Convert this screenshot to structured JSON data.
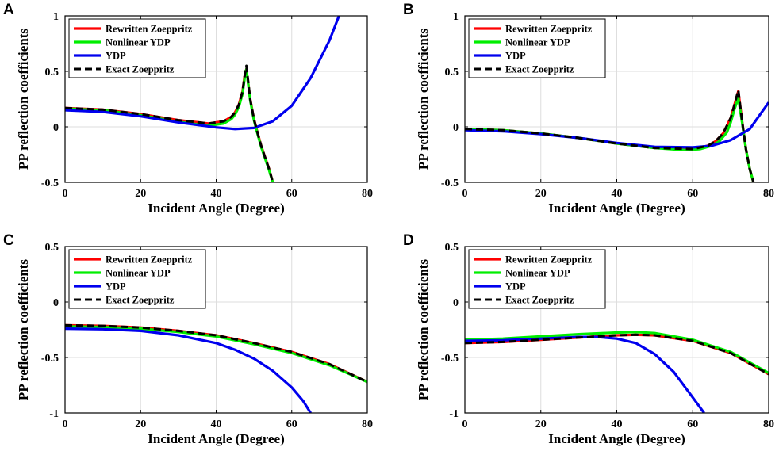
{
  "chart_data": [
    {
      "type": "line",
      "panel": "A",
      "xlabel": "Incident Angle (Degree)",
      "ylabel": "PP reflection coefficients",
      "xlim": [
        0,
        80
      ],
      "ylim": [
        -0.5,
        1
      ],
      "xticks": [
        0,
        20,
        40,
        60,
        80
      ],
      "xtick_labels": [
        "0",
        "20",
        "40",
        "60",
        "80"
      ],
      "yticks": [
        -0.5,
        0,
        0.5,
        1
      ],
      "ytick_labels": [
        "-0.5",
        "0",
        "0.5",
        "1"
      ],
      "grid": true,
      "legend_position": "top-left",
      "series": [
        {
          "name": "Rewritten Zoeppritz",
          "color": "#ff0000",
          "style": "solid",
          "x": [
            0,
            10,
            20,
            30,
            38,
            42,
            44,
            45,
            46,
            47,
            47.5,
            48,
            49,
            50,
            51,
            52,
            53,
            54,
            55
          ],
          "y": [
            0.17,
            0.155,
            0.115,
            0.06,
            0.03,
            0.05,
            0.09,
            0.13,
            0.2,
            0.32,
            0.45,
            0.52,
            0.25,
            0.07,
            -0.06,
            -0.18,
            -0.28,
            -0.38,
            -0.5
          ]
        },
        {
          "name": "Nonlinear YDP",
          "color": "#00ee00",
          "style": "solid",
          "x": [
            0,
            10,
            20,
            30,
            38,
            42,
            44,
            45,
            46,
            47,
            47.5,
            48,
            49,
            50,
            51,
            52,
            53,
            54,
            55
          ],
          "y": [
            0.165,
            0.15,
            0.105,
            0.045,
            0.01,
            0.03,
            0.07,
            0.11,
            0.18,
            0.3,
            0.43,
            0.52,
            0.24,
            0.06,
            -0.07,
            -0.19,
            -0.29,
            -0.39,
            -0.5
          ]
        },
        {
          "name": "YDP",
          "color": "#0000ee",
          "style": "solid",
          "x": [
            0,
            10,
            20,
            30,
            40,
            45,
            50,
            55,
            60,
            65,
            70,
            72.5
          ],
          "y": [
            0.15,
            0.135,
            0.095,
            0.04,
            -0.005,
            -0.02,
            -0.01,
            0.05,
            0.19,
            0.44,
            0.78,
            1.0
          ]
        },
        {
          "name": "Exact Zoeppritz",
          "color": "#000000",
          "style": "dashed",
          "x": [
            0,
            10,
            20,
            30,
            38,
            42,
            44,
            45,
            46,
            47,
            47.5,
            48,
            49,
            50,
            51,
            52,
            53,
            54,
            55
          ],
          "y": [
            0.17,
            0.155,
            0.115,
            0.06,
            0.03,
            0.05,
            0.09,
            0.13,
            0.2,
            0.32,
            0.45,
            0.55,
            0.25,
            0.07,
            -0.06,
            -0.18,
            -0.28,
            -0.38,
            -0.5
          ]
        }
      ]
    },
    {
      "type": "line",
      "panel": "B",
      "xlabel": "Incident Angle (Degree)",
      "ylabel": "PP reflection coefficients",
      "xlim": [
        0,
        80
      ],
      "ylim": [
        -0.5,
        1
      ],
      "xticks": [
        0,
        20,
        40,
        60,
        80
      ],
      "xtick_labels": [
        "0",
        "20",
        "40",
        "60",
        "80"
      ],
      "yticks": [
        -0.5,
        0,
        0.5,
        1
      ],
      "ytick_labels": [
        "-0.5",
        "0",
        "0.5",
        "1"
      ],
      "grid": true,
      "legend_position": "top-left",
      "series": [
        {
          "name": "Rewritten Zoeppritz",
          "color": "#ff0000",
          "style": "solid",
          "x": [
            0,
            10,
            20,
            30,
            40,
            50,
            60,
            64,
            66,
            68,
            70,
            71,
            72,
            73,
            74,
            75,
            76
          ],
          "y": [
            -0.02,
            -0.03,
            -0.06,
            -0.1,
            -0.15,
            -0.19,
            -0.2,
            -0.17,
            -0.13,
            -0.06,
            0.08,
            0.2,
            0.32,
            0.05,
            -0.2,
            -0.38,
            -0.5
          ]
        },
        {
          "name": "Nonlinear YDP",
          "color": "#00ee00",
          "style": "solid",
          "x": [
            0,
            10,
            20,
            30,
            40,
            50,
            58,
            62,
            65,
            67,
            69,
            70,
            71,
            72,
            73,
            74,
            75,
            76
          ],
          "y": [
            -0.02,
            -0.03,
            -0.06,
            -0.1,
            -0.15,
            -0.19,
            -0.21,
            -0.2,
            -0.17,
            -0.13,
            -0.05,
            0.04,
            0.16,
            0.26,
            0.04,
            -0.2,
            -0.38,
            -0.5
          ]
        },
        {
          "name": "YDP",
          "color": "#0000ee",
          "style": "solid",
          "x": [
            0,
            10,
            20,
            30,
            40,
            50,
            60,
            65,
            70,
            75,
            80
          ],
          "y": [
            -0.03,
            -0.04,
            -0.065,
            -0.1,
            -0.145,
            -0.18,
            -0.185,
            -0.17,
            -0.12,
            -0.02,
            0.22
          ]
        },
        {
          "name": "Exact Zoeppritz",
          "color": "#000000",
          "style": "dashed",
          "x": [
            0,
            10,
            20,
            30,
            40,
            50,
            60,
            64,
            66,
            68,
            70,
            71,
            72,
            73,
            74,
            75,
            76
          ],
          "y": [
            -0.02,
            -0.03,
            -0.06,
            -0.1,
            -0.15,
            -0.19,
            -0.2,
            -0.17,
            -0.13,
            -0.06,
            0.08,
            0.2,
            0.33,
            0.05,
            -0.2,
            -0.38,
            -0.5
          ]
        }
      ]
    },
    {
      "type": "line",
      "panel": "C",
      "xlabel": "Incident Angle (Degree)",
      "ylabel": "PP reflection coefficients",
      "xlim": [
        0,
        80
      ],
      "ylim": [
        -1,
        0.5
      ],
      "xticks": [
        0,
        20,
        40,
        60,
        80
      ],
      "xtick_labels": [
        "0",
        "20",
        "40",
        "60",
        "80"
      ],
      "yticks": [
        -1,
        -0.5,
        0,
        0.5
      ],
      "ytick_labels": [
        "-1",
        "-0.5",
        "0",
        "0.5"
      ],
      "grid": true,
      "legend_position": "top-left",
      "series": [
        {
          "name": "Rewritten Zoeppritz",
          "color": "#ff0000",
          "style": "solid",
          "x": [
            0,
            10,
            20,
            30,
            40,
            50,
            60,
            70,
            80
          ],
          "y": [
            -0.21,
            -0.215,
            -0.23,
            -0.26,
            -0.3,
            -0.37,
            -0.45,
            -0.56,
            -0.72
          ]
        },
        {
          "name": "Nonlinear YDP",
          "color": "#00ee00",
          "style": "solid",
          "x": [
            0,
            10,
            20,
            30,
            40,
            50,
            60,
            70,
            80
          ],
          "y": [
            -0.22,
            -0.225,
            -0.24,
            -0.27,
            -0.31,
            -0.38,
            -0.46,
            -0.57,
            -0.72
          ]
        },
        {
          "name": "YDP",
          "color": "#0000ee",
          "style": "solid",
          "x": [
            0,
            10,
            20,
            30,
            40,
            45,
            50,
            55,
            60,
            63,
            65
          ],
          "y": [
            -0.24,
            -0.245,
            -0.26,
            -0.3,
            -0.37,
            -0.43,
            -0.51,
            -0.62,
            -0.77,
            -0.89,
            -1.0
          ]
        },
        {
          "name": "Exact Zoeppritz",
          "color": "#000000",
          "style": "dashed",
          "x": [
            0,
            10,
            20,
            30,
            40,
            50,
            60,
            70,
            80
          ],
          "y": [
            -0.21,
            -0.215,
            -0.23,
            -0.26,
            -0.3,
            -0.37,
            -0.45,
            -0.56,
            -0.72
          ]
        }
      ]
    },
    {
      "type": "line",
      "panel": "D",
      "xlabel": "Incident Angle (Degree)",
      "ylabel": "PP reflection coefficients",
      "xlim": [
        0,
        80
      ],
      "ylim": [
        -1,
        0.5
      ],
      "xticks": [
        0,
        20,
        40,
        60,
        80
      ],
      "xtick_labels": [
        "0",
        "20",
        "40",
        "60",
        "80"
      ],
      "yticks": [
        -1,
        -0.5,
        0,
        0.5
      ],
      "ytick_labels": [
        "-1",
        "-0.5",
        "0",
        "0.5"
      ],
      "grid": true,
      "legend_position": "top-left",
      "series": [
        {
          "name": "Rewritten Zoeppritz",
          "color": "#ff0000",
          "style": "solid",
          "x": [
            0,
            10,
            20,
            30,
            40,
            45,
            50,
            60,
            70,
            80
          ],
          "y": [
            -0.37,
            -0.36,
            -0.34,
            -0.32,
            -0.3,
            -0.295,
            -0.3,
            -0.35,
            -0.46,
            -0.65
          ]
        },
        {
          "name": "Nonlinear YDP",
          "color": "#00ee00",
          "style": "solid",
          "x": [
            0,
            10,
            20,
            30,
            40,
            45,
            50,
            60,
            70,
            80
          ],
          "y": [
            -0.34,
            -0.33,
            -0.31,
            -0.29,
            -0.275,
            -0.27,
            -0.28,
            -0.34,
            -0.45,
            -0.64
          ]
        },
        {
          "name": "YDP",
          "color": "#0000ee",
          "style": "solid",
          "x": [
            0,
            10,
            20,
            30,
            35,
            40,
            45,
            50,
            55,
            60,
            63
          ],
          "y": [
            -0.35,
            -0.345,
            -0.33,
            -0.315,
            -0.315,
            -0.33,
            -0.37,
            -0.47,
            -0.63,
            -0.86,
            -1.0
          ]
        },
        {
          "name": "Exact Zoeppritz",
          "color": "#000000",
          "style": "dashed",
          "x": [
            0,
            10,
            20,
            30,
            40,
            45,
            50,
            60,
            70,
            80
          ],
          "y": [
            -0.37,
            -0.36,
            -0.34,
            -0.32,
            -0.3,
            -0.295,
            -0.3,
            -0.35,
            -0.46,
            -0.65
          ]
        }
      ]
    }
  ]
}
